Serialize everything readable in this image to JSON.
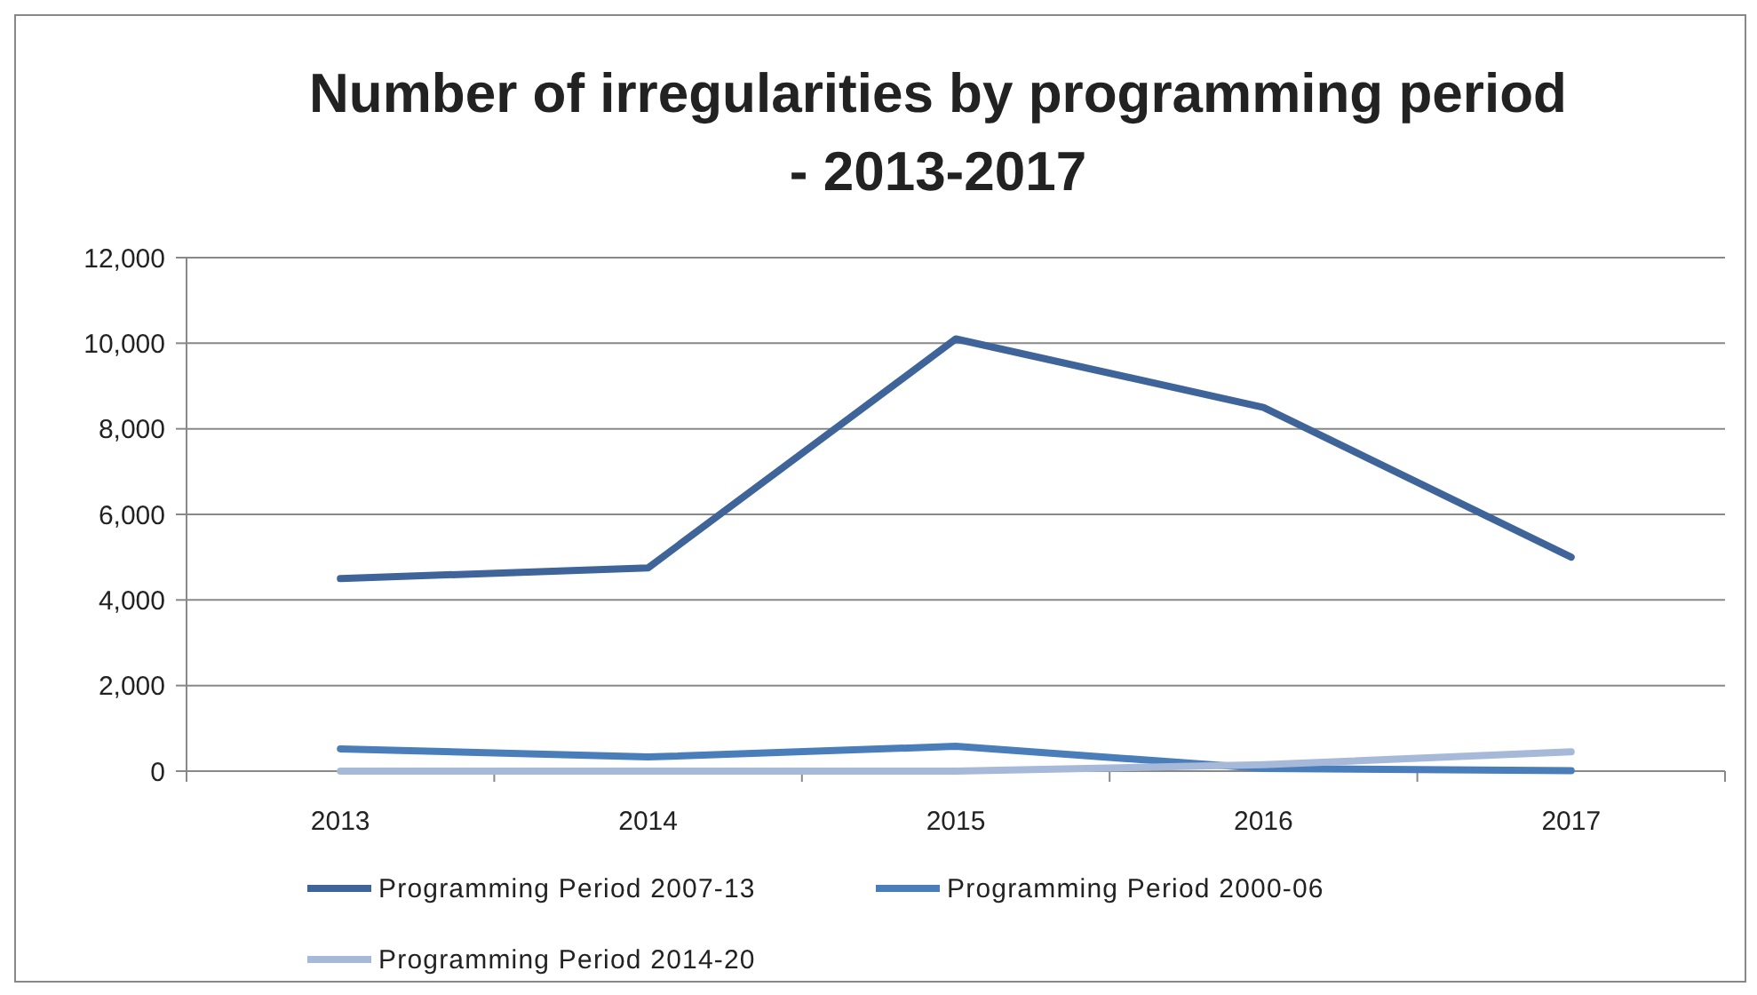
{
  "chart_data": {
    "type": "line",
    "title": "Number of irregularities by programming period\n- 2013-2017",
    "categories": [
      "2013",
      "2014",
      "2015",
      "2016",
      "2017"
    ],
    "series": [
      {
        "name": "Programming Period 2007-13",
        "color": "#3e6499",
        "values": [
          4500,
          4750,
          10100,
          8500,
          5000
        ]
      },
      {
        "name": "Programming Period 2000-06",
        "color": "#4a7ebb",
        "values": [
          520,
          330,
          580,
          60,
          10
        ]
      },
      {
        "name": "Programming Period 2014-20",
        "color": "#a7b9d9",
        "values": [
          0,
          0,
          0,
          150,
          450
        ]
      }
    ],
    "ylim": [
      0,
      12000
    ],
    "yticks": [
      {
        "value": 0,
        "label": "0"
      },
      {
        "value": 2000,
        "label": "2,000"
      },
      {
        "value": 4000,
        "label": "4,000"
      },
      {
        "value": 6000,
        "label": "6,000"
      },
      {
        "value": 8000,
        "label": "8,000"
      },
      {
        "value": 10000,
        "label": "10,000"
      },
      {
        "value": 12000,
        "label": "12,000"
      }
    ],
    "grid": "y",
    "legend": "bottom",
    "marker": "none",
    "line_style": "solid"
  }
}
